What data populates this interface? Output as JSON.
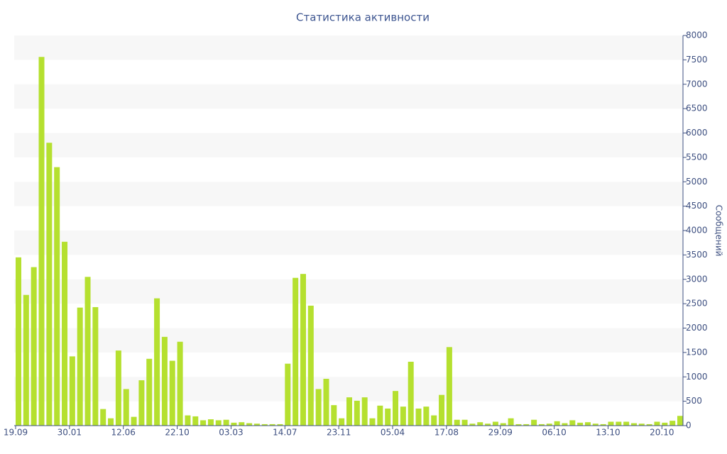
{
  "chart_data": {
    "type": "bar",
    "title": "Статистика активности",
    "y_label": "Сообщений",
    "categories": [
      "19.09",
      null,
      null,
      null,
      null,
      null,
      null,
      "30.01",
      null,
      null,
      null,
      null,
      null,
      null,
      "12.06",
      null,
      null,
      null,
      null,
      null,
      null,
      "22.10",
      null,
      null,
      null,
      null,
      null,
      null,
      "03.03",
      null,
      null,
      null,
      null,
      null,
      null,
      "14.07",
      null,
      null,
      null,
      null,
      null,
      null,
      "23.11",
      null,
      null,
      null,
      null,
      null,
      null,
      "05.04",
      null,
      null,
      null,
      null,
      null,
      null,
      "17.08",
      null,
      null,
      null,
      null,
      null,
      null,
      "29.09",
      null,
      null,
      null,
      null,
      null,
      null,
      "06.10",
      null,
      null,
      null,
      null,
      null,
      null,
      "13.10",
      null,
      null,
      null,
      null,
      null,
      null,
      "20.10",
      null,
      null
    ],
    "values": [
      3450,
      2680,
      3250,
      7560,
      5800,
      5300,
      3770,
      1420,
      2420,
      3050,
      2430,
      340,
      150,
      1540,
      750,
      180,
      930,
      1370,
      2610,
      1820,
      1330,
      1720,
      210,
      190,
      110,
      130,
      110,
      120,
      60,
      70,
      50,
      40,
      30,
      30,
      30,
      1270,
      3030,
      3110,
      2460,
      750,
      960,
      420,
      150,
      580,
      510,
      580,
      150,
      410,
      350,
      710,
      390,
      1310,
      350,
      390,
      210,
      630,
      1610,
      120,
      120,
      40,
      70,
      40,
      80,
      50,
      150,
      30,
      30,
      120,
      30,
      40,
      90,
      50,
      110,
      60,
      70,
      40,
      30,
      80,
      80,
      80,
      50,
      40,
      30,
      80,
      60,
      100,
      200
    ],
    "color": "#b5e02f",
    "ylim": [
      0,
      8000
    ],
    "yticks": [
      0,
      500,
      1000,
      1500,
      2000,
      2500,
      3000,
      3500,
      4000,
      4500,
      5000,
      5500,
      6000,
      6500,
      7000,
      7500,
      8000
    ],
    "grid": true,
    "y_axis_side": "right"
  }
}
